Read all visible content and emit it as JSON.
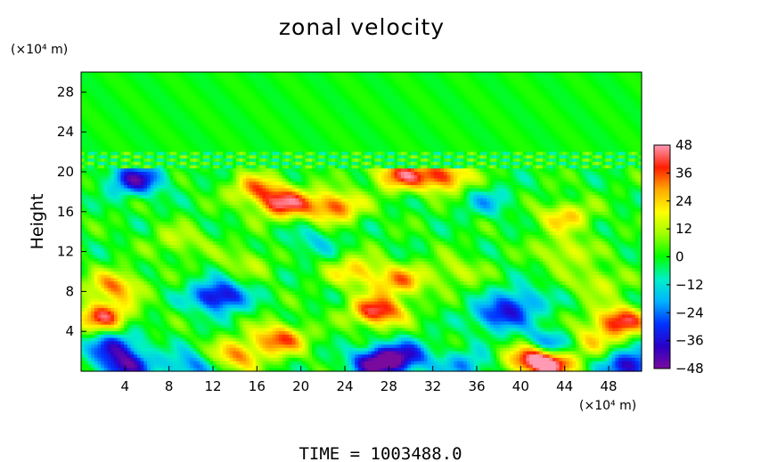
{
  "chart_data": {
    "type": "heatmap",
    "title": "zonal velocity",
    "ylabel": "Height",
    "x_unit_label": "(×10⁴ m)",
    "y_unit_label": "(×10⁴ m)",
    "footer": "TIME  =  1003488.0",
    "xlim": [
      0,
      51
    ],
    "ylim": [
      0,
      30
    ],
    "xticks": [
      4,
      8,
      12,
      16,
      20,
      24,
      28,
      32,
      36,
      40,
      44,
      48
    ],
    "yticks": [
      4,
      8,
      12,
      16,
      20,
      24,
      28
    ],
    "colorbar": {
      "min": -48,
      "max": 48,
      "ticks": [
        48,
        36,
        24,
        12,
        0,
        -12,
        -24,
        -36,
        -48
      ],
      "tick_labels": [
        "48",
        "36",
        "24",
        "12",
        "0",
        "−12",
        "−24",
        "−36",
        "−48"
      ]
    },
    "features": [
      {
        "x": 3,
        "y": 8.5,
        "value": 30
      },
      {
        "x": 2,
        "y": 5.5,
        "value": 38
      },
      {
        "x": 12.5,
        "y": 7.5,
        "value": -42
      },
      {
        "x": 14,
        "y": 1.5,
        "value": 30
      },
      {
        "x": 18,
        "y": 3.2,
        "value": 36
      },
      {
        "x": 18.5,
        "y": 16.8,
        "value": 40
      },
      {
        "x": 23,
        "y": 16.5,
        "value": 36
      },
      {
        "x": 16,
        "y": 18.3,
        "value": 28
      },
      {
        "x": 33,
        "y": 19.5,
        "value": 38
      },
      {
        "x": 29,
        "y": 19.7,
        "value": 36
      },
      {
        "x": 27,
        "y": 6,
        "value": 44
      },
      {
        "x": 29,
        "y": 9,
        "value": 28
      },
      {
        "x": 25,
        "y": 10,
        "value": 24
      },
      {
        "x": 27,
        "y": 0.8,
        "value": -48
      },
      {
        "x": 29.5,
        "y": 1.5,
        "value": -30
      },
      {
        "x": 42.5,
        "y": 0.8,
        "value": 48
      },
      {
        "x": 41,
        "y": 1.5,
        "value": 36
      },
      {
        "x": 49,
        "y": 5,
        "value": 42
      },
      {
        "x": 46,
        "y": 3,
        "value": 20
      },
      {
        "x": 38,
        "y": 5.5,
        "value": -30
      },
      {
        "x": 40,
        "y": 7,
        "value": -22
      },
      {
        "x": 42.5,
        "y": 2.5,
        "value": -40
      },
      {
        "x": 5,
        "y": 19.2,
        "value": -38
      },
      {
        "x": 3,
        "y": 2.5,
        "value": -30
      },
      {
        "x": 4,
        "y": 0.5,
        "value": -38
      },
      {
        "x": 21,
        "y": 13,
        "value": -12
      },
      {
        "x": 37,
        "y": 17,
        "value": -14
      },
      {
        "x": 44,
        "y": 12,
        "value": 18
      },
      {
        "x": 44,
        "y": 15.5,
        "value": 24
      },
      {
        "x": 47,
        "y": 9,
        "value": 16
      },
      {
        "x": 9,
        "y": 13,
        "value": 14
      },
      {
        "x": 15,
        "y": 11,
        "value": 12
      },
      {
        "x": 34,
        "y": 10,
        "value": 14
      },
      {
        "x": 50,
        "y": 0.5,
        "value": -40
      },
      {
        "x": 10,
        "y": 0.5,
        "value": -24
      },
      {
        "x": 35,
        "y": 0.5,
        "value": -20
      }
    ]
  }
}
